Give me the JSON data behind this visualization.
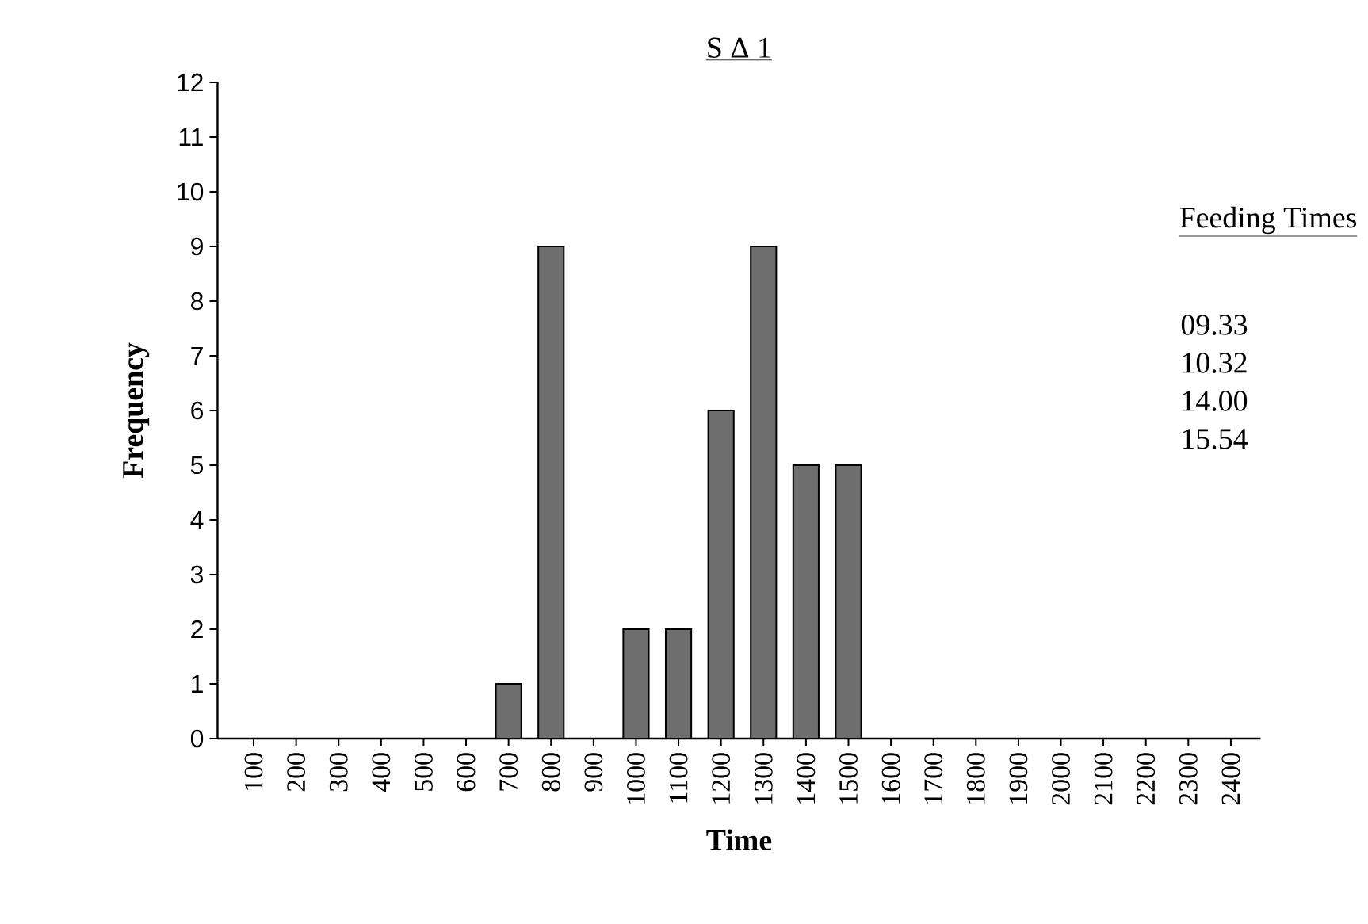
{
  "chart_data": {
    "type": "bar",
    "title": "S Δ 1",
    "xlabel": "Time",
    "ylabel": "Frequency",
    "categories": [
      "100",
      "200",
      "300",
      "400",
      "500",
      "600",
      "700",
      "800",
      "900",
      "1000",
      "1100",
      "1200",
      "1300",
      "1400",
      "1500",
      "1600",
      "1700",
      "1800",
      "1900",
      "2000",
      "2100",
      "2200",
      "2300",
      "2400"
    ],
    "values": [
      0,
      0,
      0,
      0,
      0,
      0,
      1,
      9,
      0,
      2,
      2,
      6,
      9,
      5,
      5,
      0,
      0,
      0,
      0,
      0,
      0,
      0,
      0,
      0
    ],
    "color": "#6e6e6e",
    "ylim": [
      0,
      12
    ],
    "yticks": [
      0,
      1,
      2,
      3,
      4,
      5,
      6,
      7,
      8,
      9,
      10,
      11,
      12
    ],
    "grid": false,
    "annotations": [
      "Feeding Times",
      "09.33",
      "10.32",
      "14.00",
      "15.54"
    ]
  }
}
